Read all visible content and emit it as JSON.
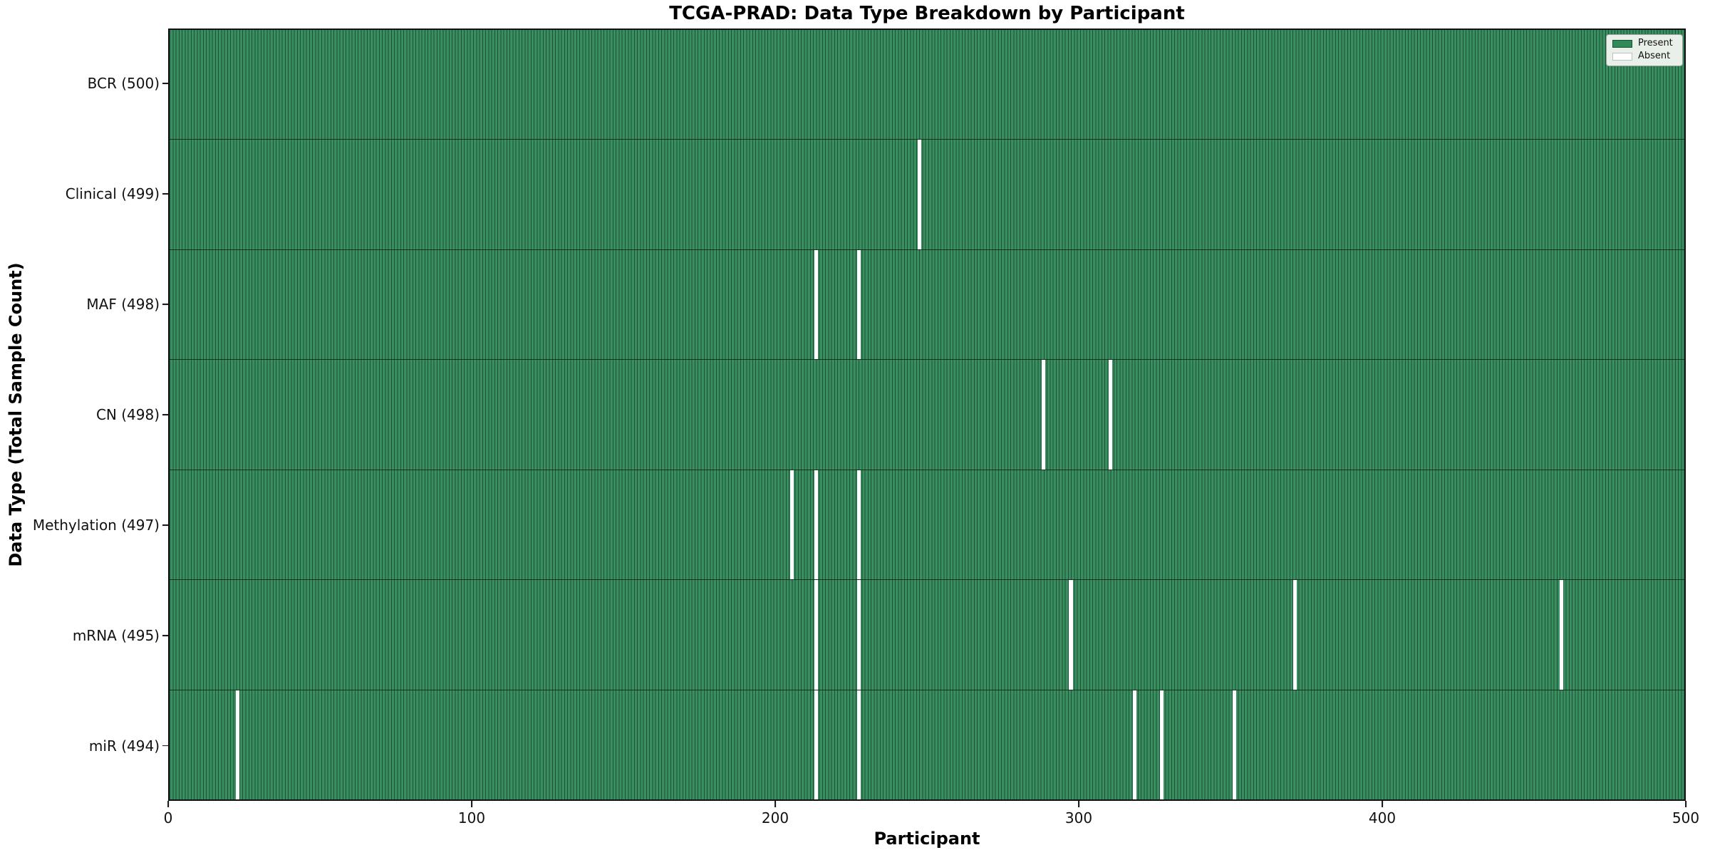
{
  "chart_data": {
    "type": "heatmap",
    "title": "TCGA-PRAD: Data Type Breakdown by Participant",
    "xlabel": "Participant",
    "ylabel": "Data Type (Total Sample Count)",
    "x_range": [
      0,
      500
    ],
    "x_ticks": [
      0,
      100,
      200,
      300,
      400,
      500
    ],
    "n_participants": 500,
    "grid": "cell-borders",
    "legend_position": "upper right",
    "legend": [
      {
        "label": "Present",
        "color": "#2e8b57"
      },
      {
        "label": "Absent",
        "color": "#ffffff"
      }
    ],
    "rows": [
      {
        "label": "BCR (500)",
        "total": 500,
        "absent_participants": []
      },
      {
        "label": "Clinical (499)",
        "total": 499,
        "absent_participants": [
          247
        ]
      },
      {
        "label": "MAF (498)",
        "total": 498,
        "absent_participants": [
          213,
          227
        ]
      },
      {
        "label": "CN (498)",
        "total": 498,
        "absent_participants": [
          288,
          310
        ]
      },
      {
        "label": "Methylation (497)",
        "total": 497,
        "absent_participants": [
          205,
          213,
          227
        ]
      },
      {
        "label": "mRNA (495)",
        "total": 495,
        "absent_participants": [
          213,
          227,
          297,
          371,
          459
        ]
      },
      {
        "label": "miR (494)",
        "total": 494,
        "absent_participants": [
          22,
          213,
          227,
          318,
          327,
          351
        ]
      }
    ],
    "colors": {
      "present_fill": "#3a8f60",
      "cell_edge": "#1f4f36",
      "absent_fill": "#ffffff",
      "row_divider": "rgba(0,0,0,0.62)",
      "spine": "#111111"
    }
  }
}
